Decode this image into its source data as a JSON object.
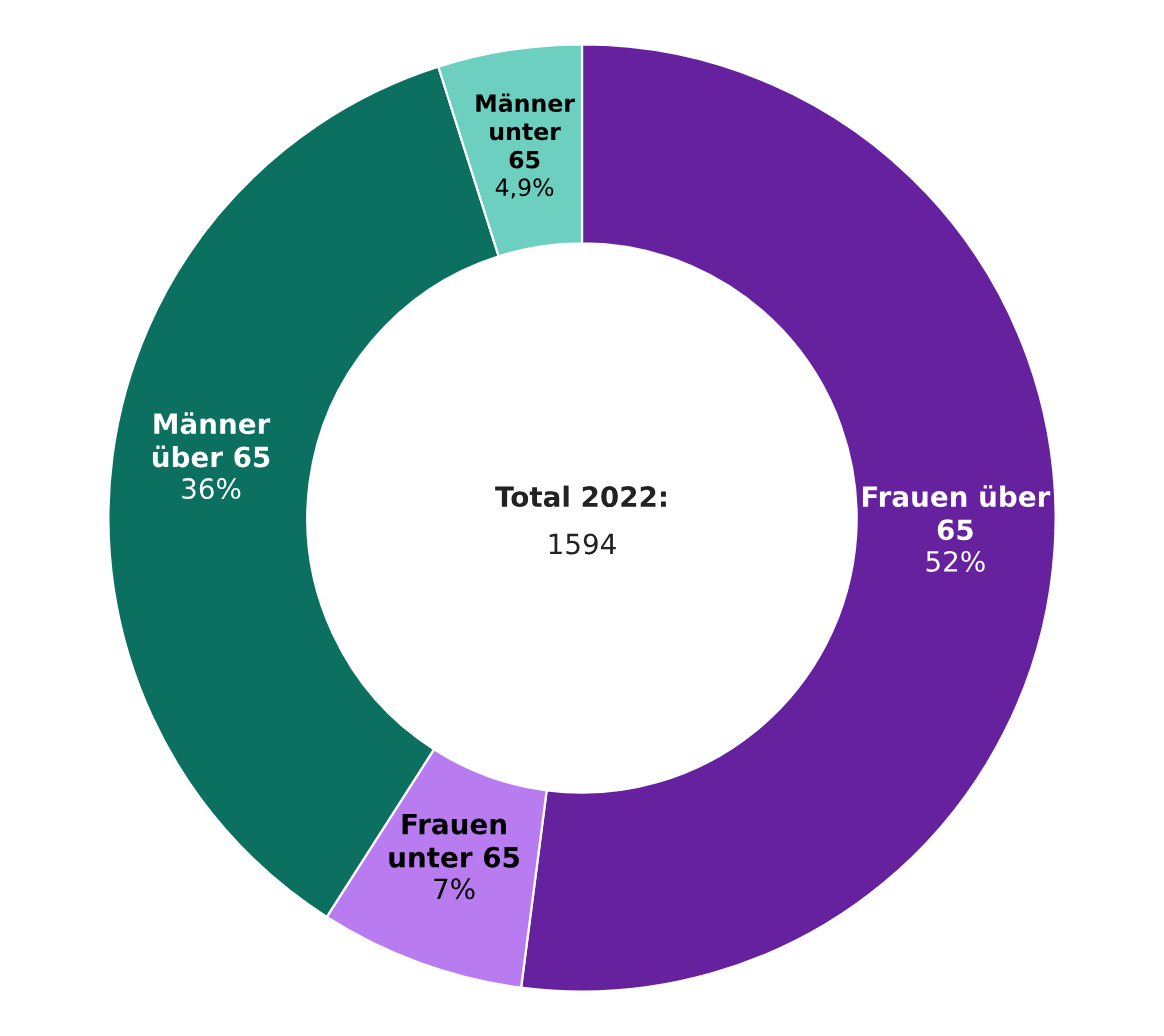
{
  "chart_data": {
    "type": "donut",
    "categories": [
      "Frauen über 65",
      "Frauen unter 65",
      "Männer über 65",
      "Männer unter 65"
    ],
    "values": [
      52,
      7,
      36,
      4.9
    ],
    "colors": [
      "#65219e",
      "#b97cf0",
      "#0b7060",
      "#6ccfc0"
    ],
    "value_labels": [
      "52%",
      "7%",
      "36%",
      "4,9%"
    ],
    "annotations": [
      "Total 2022:",
      "1594"
    ]
  }
}
